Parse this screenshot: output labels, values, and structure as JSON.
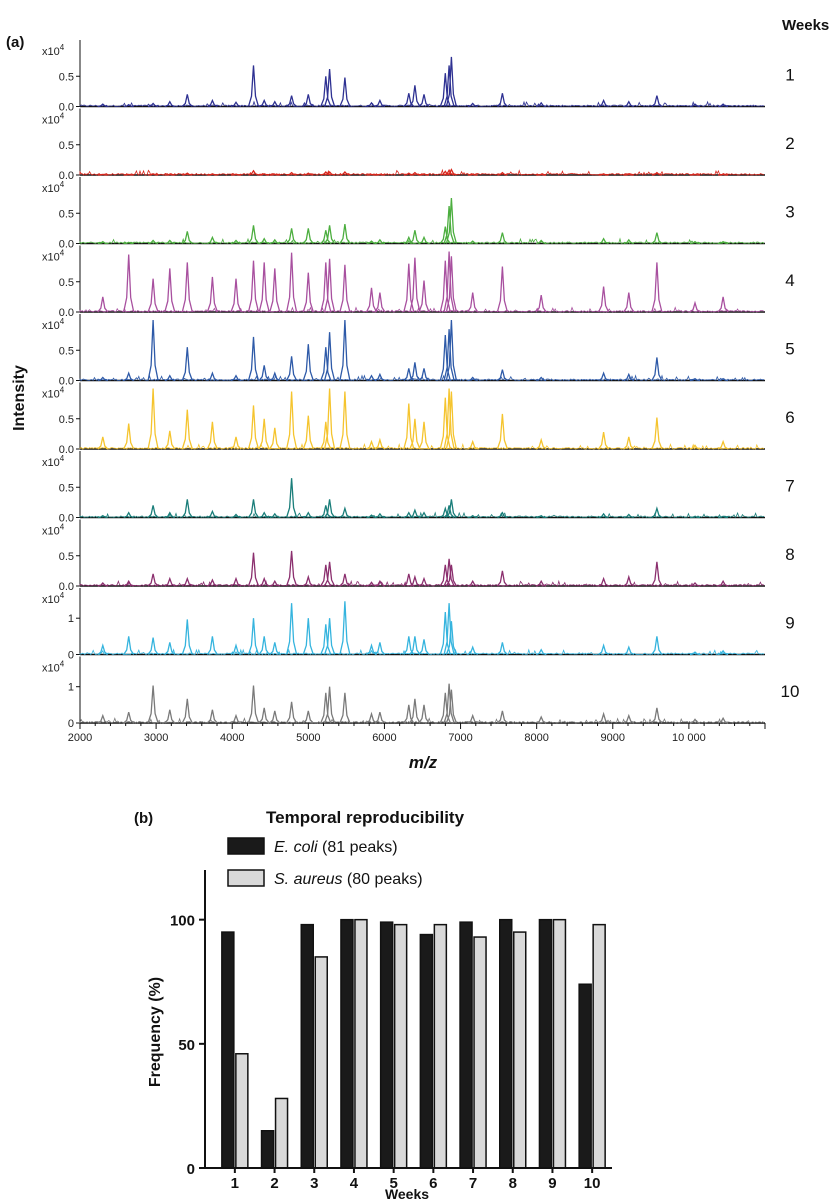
{
  "panel_a": {
    "label": "(a)",
    "weeks_title": "Weeks",
    "ylabel": "Intensity",
    "xlabel_italic": "m/z",
    "exponent_base": "x10",
    "exponent_power": "4"
  },
  "panel_b": {
    "label": "(b)",
    "title": "Temporal reproducibility",
    "legend": [
      {
        "species": "E. coli",
        "rest": " (81 peaks)"
      },
      {
        "species": "S. aureus",
        "rest": " (80 peaks)"
      }
    ]
  },
  "chart_data": [
    {
      "type": "line",
      "title": "",
      "xlabel": "m/z",
      "ylabel": "Intensity",
      "xlim": [
        2000,
        11000
      ],
      "x_ticks": [
        2000,
        3000,
        4000,
        5000,
        6000,
        7000,
        8000,
        9000,
        10000
      ],
      "x_tick_labels": [
        "2000",
        "3000",
        "4000",
        "5000",
        "6000",
        "7000",
        "8000",
        "9000",
        "10 000"
      ],
      "peak_mz": [
        2300,
        2640,
        2960,
        3180,
        3410,
        3740,
        4050,
        4280,
        4420,
        4560,
        4780,
        5000,
        5230,
        5280,
        5480,
        5830,
        5940,
        6320,
        6400,
        6520,
        6800,
        6850,
        6880,
        7160,
        7550,
        8060,
        8880,
        9210,
        9580,
        10080,
        10450
      ],
      "rows": [
        {
          "week": "1",
          "color": "#2e3192",
          "y_unit": "x10^4",
          "y_ticks": [
            0.0,
            0.5
          ],
          "y_tick_labels": [
            "0.0",
            "0.5"
          ],
          "peak_heights": [
            0.04,
            0.03,
            0.05,
            0.08,
            0.2,
            0.1,
            0.07,
            0.68,
            0.1,
            0.08,
            0.18,
            0.2,
            0.5,
            0.62,
            0.48,
            0.06,
            0.1,
            0.22,
            0.35,
            0.2,
            0.55,
            0.68,
            0.82,
            0.05,
            0.22,
            0.06,
            0.1,
            0.08,
            0.18,
            0.04,
            0.04
          ]
        },
        {
          "week": "2",
          "color": "#d9261c",
          "y_unit": "x10^4",
          "y_ticks": [
            0.0,
            0.5
          ],
          "y_tick_labels": [
            "0.0",
            "0.5"
          ],
          "peak_heights": [
            0.01,
            0.01,
            0.02,
            0.01,
            0.03,
            0.02,
            0.01,
            0.07,
            0.02,
            0.01,
            0.04,
            0.03,
            0.05,
            0.05,
            0.05,
            0.01,
            0.01,
            0.03,
            0.04,
            0.02,
            0.06,
            0.08,
            0.09,
            0.01,
            0.04,
            0.01,
            0.02,
            0.01,
            0.04,
            0.01,
            0.01
          ]
        },
        {
          "week": "3",
          "color": "#4cae3f",
          "y_unit": "x10^4",
          "y_ticks": [
            0.0,
            0.5
          ],
          "y_tick_labels": [
            "0.0",
            "0.5"
          ],
          "peak_heights": [
            0.03,
            0.02,
            0.05,
            0.05,
            0.2,
            0.1,
            0.05,
            0.3,
            0.08,
            0.06,
            0.25,
            0.25,
            0.22,
            0.3,
            0.32,
            0.04,
            0.06,
            0.1,
            0.22,
            0.1,
            0.28,
            0.62,
            0.75,
            0.04,
            0.18,
            0.05,
            0.08,
            0.06,
            0.18,
            0.03,
            0.03
          ]
        },
        {
          "week": "4",
          "color": "#a8509f",
          "y_unit": "x10^4",
          "y_ticks": [
            0.0,
            0.5
          ],
          "y_tick_labels": [
            "0.0",
            "0.5"
          ],
          "peak_heights": [
            0.25,
            0.95,
            0.55,
            0.72,
            0.82,
            0.58,
            0.55,
            0.85,
            0.82,
            0.72,
            0.98,
            0.65,
            0.82,
            0.88,
            0.78,
            0.4,
            0.32,
            0.8,
            0.9,
            0.52,
            0.85,
            1.0,
            0.92,
            0.32,
            0.75,
            0.28,
            0.42,
            0.32,
            0.82,
            0.15,
            0.25
          ]
        },
        {
          "week": "5",
          "color": "#2e5aa8",
          "y_unit": "x10^4",
          "y_ticks": [
            0.0,
            0.5
          ],
          "y_tick_labels": [
            "0.0",
            "0.5"
          ],
          "peak_heights": [
            0.05,
            0.12,
            1.0,
            0.08,
            0.55,
            0.12,
            0.08,
            0.72,
            0.25,
            0.12,
            0.4,
            0.6,
            0.55,
            0.8,
            1.0,
            0.08,
            0.1,
            0.2,
            0.3,
            0.2,
            0.75,
            0.85,
            1.0,
            0.05,
            0.18,
            0.05,
            0.12,
            0.1,
            0.38,
            0.03,
            0.03
          ]
        },
        {
          "week": "6",
          "color": "#f5c42e",
          "y_unit": "x10^4",
          "y_ticks": [
            0.0,
            0.5
          ],
          "y_tick_labels": [
            "0.0",
            "0.5"
          ],
          "peak_heights": [
            0.2,
            0.42,
            1.0,
            0.3,
            0.65,
            0.45,
            0.2,
            0.72,
            0.5,
            0.35,
            0.95,
            0.55,
            0.45,
            1.0,
            0.95,
            0.12,
            0.15,
            0.75,
            0.5,
            0.45,
            0.85,
            1.0,
            0.95,
            0.12,
            0.58,
            0.15,
            0.28,
            0.2,
            0.52,
            0.06,
            0.12
          ]
        },
        {
          "week": "7",
          "color": "#1a7e7a",
          "y_unit": "x10^4",
          "y_ticks": [
            0.0,
            0.5
          ],
          "y_tick_labels": [
            "0.0",
            "0.5"
          ],
          "peak_heights": [
            0.03,
            0.08,
            0.2,
            0.08,
            0.3,
            0.1,
            0.05,
            0.3,
            0.08,
            0.06,
            0.65,
            0.08,
            0.2,
            0.3,
            0.15,
            0.04,
            0.06,
            0.08,
            0.12,
            0.08,
            0.15,
            0.2,
            0.3,
            0.03,
            0.08,
            0.03,
            0.06,
            0.05,
            0.15,
            0.02,
            0.02
          ]
        },
        {
          "week": "8",
          "color": "#8b2f6e",
          "y_unit": "x10^4",
          "y_ticks": [
            0.0,
            0.5
          ],
          "y_tick_labels": [
            "0.0",
            "0.5"
          ],
          "peak_heights": [
            0.05,
            0.08,
            0.2,
            0.12,
            0.12,
            0.1,
            0.12,
            0.55,
            0.12,
            0.08,
            0.58,
            0.15,
            0.35,
            0.4,
            0.2,
            0.06,
            0.08,
            0.2,
            0.15,
            0.12,
            0.35,
            0.45,
            0.35,
            0.08,
            0.25,
            0.08,
            0.12,
            0.15,
            0.4,
            0.05,
            0.08
          ]
        },
        {
          "week": "9",
          "color": "#35b4de",
          "y_unit": "x10^4",
          "y_ticks": [
            0,
            1
          ],
          "y_tick_labels": [
            "0",
            "1"
          ],
          "peak_heights": [
            0.15,
            0.3,
            0.28,
            0.2,
            0.58,
            0.3,
            0.15,
            0.6,
            0.3,
            0.2,
            0.85,
            0.6,
            0.5,
            0.6,
            0.88,
            0.15,
            0.2,
            0.3,
            0.3,
            0.25,
            0.7,
            0.85,
            0.55,
            0.12,
            0.2,
            0.08,
            0.15,
            0.12,
            0.3,
            0.04,
            0.06
          ]
        },
        {
          "week": "10",
          "color": "#7a7a7a",
          "y_unit": "x10^4",
          "y_ticks": [
            0,
            1
          ],
          "y_tick_labels": [
            "0",
            "1"
          ],
          "peak_heights": [
            0.12,
            0.18,
            0.62,
            0.22,
            0.4,
            0.22,
            0.12,
            0.62,
            0.25,
            0.2,
            0.35,
            0.2,
            0.5,
            0.6,
            0.5,
            0.15,
            0.18,
            0.3,
            0.4,
            0.3,
            0.5,
            0.65,
            0.55,
            0.12,
            0.2,
            0.1,
            0.15,
            0.12,
            0.25,
            0.06,
            0.08
          ]
        }
      ]
    },
    {
      "type": "bar",
      "title": "Temporal reproducibility",
      "xlabel": "Weeks",
      "ylabel": "Frequency (%)",
      "ylim": [
        0,
        120
      ],
      "y_ticks": [
        0,
        50,
        100
      ],
      "categories": [
        "1",
        "2",
        "3",
        "4",
        "5",
        "6",
        "7",
        "8",
        "9",
        "10"
      ],
      "series": [
        {
          "name": "E. coli (81 peaks)",
          "color": "#1a1a1a",
          "values": [
            95,
            15,
            98,
            100,
            99,
            94,
            99,
            100,
            100,
            74
          ]
        },
        {
          "name": "S. aureus (80 peaks)",
          "color": "#d9d9d9",
          "values": [
            46,
            28,
            85,
            100,
            98,
            98,
            93,
            95,
            100,
            98
          ]
        }
      ]
    }
  ]
}
